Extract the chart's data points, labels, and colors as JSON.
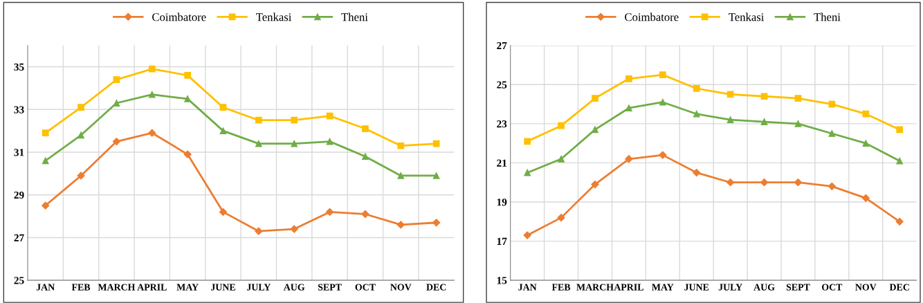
{
  "chart_data": [
    {
      "type": "line",
      "categories": [
        "JAN",
        "FEB",
        "MARCH",
        "APRIL",
        "MAY",
        "JUNE",
        "JULY",
        "AUG",
        "SEPT",
        "OCT",
        "NOV",
        "DEC"
      ],
      "ylim": [
        25,
        36
      ],
      "yticks": [
        25,
        27,
        29,
        31,
        33,
        35
      ],
      "grid": true,
      "legend": "top",
      "series": [
        {
          "name": "Coimbatore",
          "color": "#ed7d31",
          "marker": "diamond",
          "values": [
            28.5,
            29.9,
            31.5,
            31.9,
            30.9,
            28.2,
            27.3,
            27.4,
            28.2,
            28.1,
            27.6,
            27.7
          ]
        },
        {
          "name": "Tenkasi",
          "color": "#ffc000",
          "marker": "square",
          "values": [
            31.9,
            33.1,
            34.4,
            34.9,
            34.6,
            33.1,
            32.5,
            32.5,
            32.7,
            32.1,
            31.3,
            31.4
          ]
        },
        {
          "name": "Theni",
          "color": "#70ad47",
          "marker": "triangle",
          "values": [
            30.6,
            31.8,
            33.3,
            33.7,
            33.5,
            32.0,
            31.4,
            31.4,
            31.5,
            30.8,
            29.9,
            29.9
          ]
        }
      ]
    },
    {
      "type": "line",
      "categories": [
        "JAN",
        "FEB",
        "MARCH",
        "APRIL",
        "MAY",
        "JUNE",
        "JULY",
        "AUG",
        "SEPT",
        "OCT",
        "NOV",
        "DEC"
      ],
      "ylim": [
        15,
        27
      ],
      "yticks": [
        15,
        17,
        19,
        21,
        23,
        25,
        27
      ],
      "grid": true,
      "legend": "top",
      "series": [
        {
          "name": "Coimbatore",
          "color": "#ed7d31",
          "marker": "diamond",
          "values": [
            17.3,
            18.2,
            19.9,
            21.2,
            21.4,
            20.5,
            20.0,
            20.0,
            20.0,
            19.8,
            19.2,
            18.0
          ]
        },
        {
          "name": "Tenkasi",
          "color": "#ffc000",
          "marker": "square",
          "values": [
            22.1,
            22.9,
            24.3,
            25.3,
            25.5,
            24.8,
            24.5,
            24.4,
            24.3,
            24.0,
            23.5,
            22.7
          ]
        },
        {
          "name": "Theni",
          "color": "#70ad47",
          "marker": "triangle",
          "values": [
            20.5,
            21.2,
            22.7,
            23.8,
            24.1,
            23.5,
            23.2,
            23.1,
            23.0,
            22.5,
            22.0,
            21.1
          ]
        }
      ]
    }
  ]
}
